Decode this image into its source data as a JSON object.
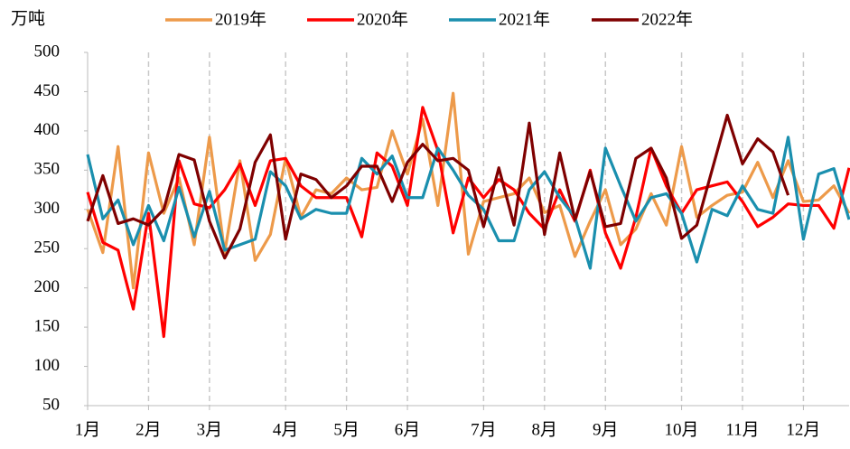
{
  "chart_data": {
    "type": "line",
    "y_label": "万吨",
    "categories": [
      "1月",
      null,
      null,
      null,
      "2月",
      null,
      null,
      null,
      "3月",
      null,
      null,
      null,
      null,
      "4月",
      null,
      null,
      null,
      "5月",
      null,
      null,
      null,
      "6月",
      null,
      null,
      null,
      null,
      "7月",
      null,
      null,
      null,
      "8月",
      null,
      null,
      null,
      "9月",
      null,
      null,
      null,
      null,
      "10月",
      null,
      null,
      null,
      "11月",
      null,
      null,
      null,
      "12月",
      null,
      null,
      null
    ],
    "series": [
      {
        "name": "2019年",
        "color": "#ed9a4a",
        "values": [
          300,
          245,
          380,
          200,
          372,
          295,
          340,
          255,
          392,
          245,
          362,
          235,
          268,
          365,
          290,
          325,
          320,
          340,
          325,
          328,
          400,
          345,
          415,
          305,
          448,
          243,
          310,
          315,
          320,
          340,
          296,
          305,
          240,
          285,
          325,
          255,
          275,
          320,
          280,
          380,
          290,
          305,
          318,
          322,
          360,
          315,
          362,
          310,
          312,
          330,
          295
        ]
      },
      {
        "name": "2020年",
        "color": "#ff0000",
        "values": [
          322,
          258,
          248,
          173,
          295,
          138,
          362,
          307,
          302,
          325,
          358,
          305,
          362,
          365,
          330,
          315,
          315,
          315,
          265,
          372,
          355,
          305,
          430,
          375,
          270,
          340,
          315,
          338,
          325,
          295,
          275,
          325,
          285,
          350,
          270,
          225,
          290,
          378,
          330,
          295,
          325,
          330,
          335,
          310,
          278,
          290,
          307,
          305,
          305,
          276,
          353
        ]
      },
      {
        "name": "2021年",
        "color": "#1a8fae",
        "values": [
          370,
          288,
          312,
          255,
          305,
          260,
          328,
          265,
          323,
          248,
          255,
          262,
          348,
          330,
          288,
          300,
          295,
          295,
          365,
          345,
          368,
          315,
          315,
          378,
          350,
          318,
          300,
          260,
          260,
          325,
          348,
          315,
          290,
          225,
          378,
          330,
          285,
          315,
          320,
          295,
          233,
          300,
          292,
          330,
          300,
          295,
          392,
          262,
          345,
          352,
          287
        ]
      },
      {
        "name": "2022年",
        "color": "#7f0000",
        "values": [
          285,
          343,
          282,
          288,
          280,
          300,
          370,
          363,
          285,
          238,
          275,
          360,
          395,
          262,
          345,
          338,
          315,
          330,
          355,
          355,
          310,
          360,
          383,
          362,
          365,
          350,
          278,
          353,
          280,
          410,
          268,
          372,
          287,
          348,
          278,
          282,
          365,
          378,
          340,
          263,
          280,
          350,
          420,
          358,
          390,
          373,
          318,
          null,
          null,
          null,
          null
        ]
      }
    ],
    "ylim": [
      50,
      500
    ],
    "yticks": [
      50,
      100,
      150,
      200,
      250,
      300,
      350,
      400,
      450,
      500
    ],
    "legend": "top",
    "grid": false
  }
}
